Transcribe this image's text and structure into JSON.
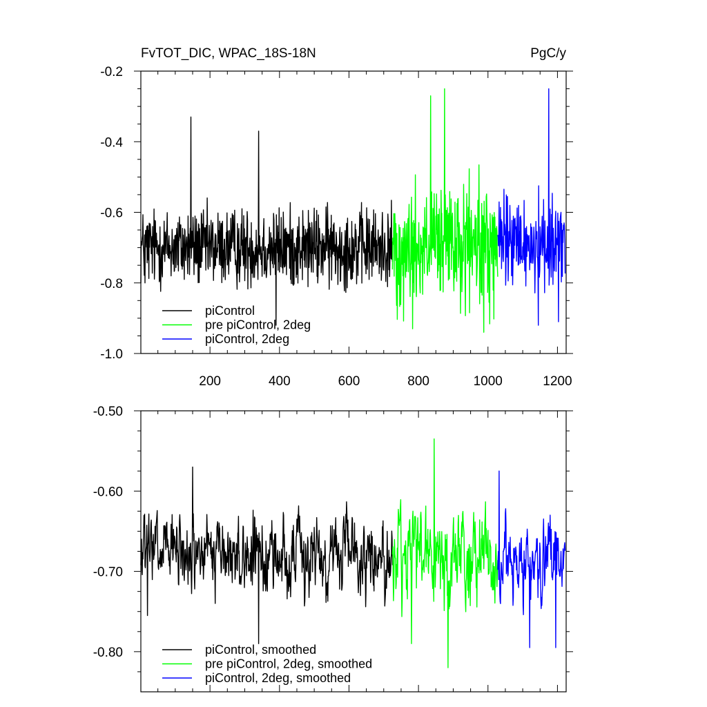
{
  "chart_data": [
    {
      "type": "line",
      "title": "FvTOT_DIC, WPAC_18S-18N",
      "units": "PgC/y",
      "xlabel": "",
      "ylabel": "",
      "xlim": [
        1,
        1225
      ],
      "ylim": [
        -1.0,
        -0.2
      ],
      "x_ticks": [
        200,
        400,
        600,
        800,
        1000,
        1200
      ],
      "y_ticks": [
        -1.0,
        -0.8,
        -0.6,
        -0.4,
        -0.2
      ],
      "y_tick_labels": [
        "-1.0",
        "-0.8",
        "-0.6",
        "-0.4",
        "-0.2"
      ],
      "grid": false,
      "legend_position": "bottom-left",
      "series": [
        {
          "name": "piControl",
          "color": "#000000",
          "x_start": 1,
          "x_end": 725,
          "mean": -0.7,
          "amplitude": 0.09,
          "points": [
            [
              145,
              -0.33
            ],
            [
              340,
              -0.37
            ],
            [
              390,
              -0.92
            ],
            [
              13,
              -0.8
            ]
          ]
        },
        {
          "name": "pre piControl, 2deg",
          "color": "#00ff00",
          "x_start": 725,
          "x_end": 1028,
          "mean": -0.7,
          "amplitude": 0.14,
          "points": [
            [
              875,
              -0.25
            ],
            [
              835,
              -0.27
            ],
            [
              988,
              -0.94
            ],
            [
              783,
              -0.93
            ]
          ]
        },
        {
          "name": "piControl, 2deg",
          "color": "#0000ff",
          "x_start": 1028,
          "x_end": 1222,
          "mean": -0.69,
          "amplitude": 0.11,
          "points": [
            [
              1175,
              -0.25
            ],
            [
              1145,
              -0.92
            ],
            [
              1203,
              -0.91
            ]
          ]
        }
      ]
    },
    {
      "type": "line",
      "title": "",
      "xlabel": "",
      "ylabel": "",
      "xlim": [
        1,
        1225
      ],
      "ylim": [
        -0.85,
        -0.5
      ],
      "x_ticks": [
        200,
        400,
        600,
        800,
        1000,
        1200
      ],
      "y_ticks": [
        -0.8,
        -0.7,
        -0.6,
        -0.5
      ],
      "y_tick_labels": [
        "-0.80",
        "-0.70",
        "-0.60",
        "-0.50"
      ],
      "grid": false,
      "legend_position": "bottom-left",
      "series": [
        {
          "name": "piControl, smoothed",
          "color": "#000000",
          "x_start": 1,
          "x_end": 725,
          "mean": -0.68,
          "amplitude": 0.045,
          "points": [
            [
              150,
              -0.57
            ],
            [
              340,
              -0.79
            ],
            [
              20,
              -0.755
            ]
          ]
        },
        {
          "name": "pre piControl, 2deg, smoothed",
          "color": "#00ff00",
          "x_start": 725,
          "x_end": 1028,
          "mean": -0.69,
          "amplitude": 0.055,
          "points": [
            [
              845,
              -0.535
            ],
            [
              885,
              -0.82
            ],
            [
              780,
              -0.79
            ]
          ]
        },
        {
          "name": "piControl, 2deg, smoothed",
          "color": "#0000ff",
          "x_start": 1028,
          "x_end": 1222,
          "mean": -0.69,
          "amplitude": 0.045,
          "points": [
            [
              1032,
              -0.575
            ],
            [
              1120,
              -0.795
            ],
            [
              1195,
              -0.795
            ]
          ]
        }
      ]
    }
  ]
}
